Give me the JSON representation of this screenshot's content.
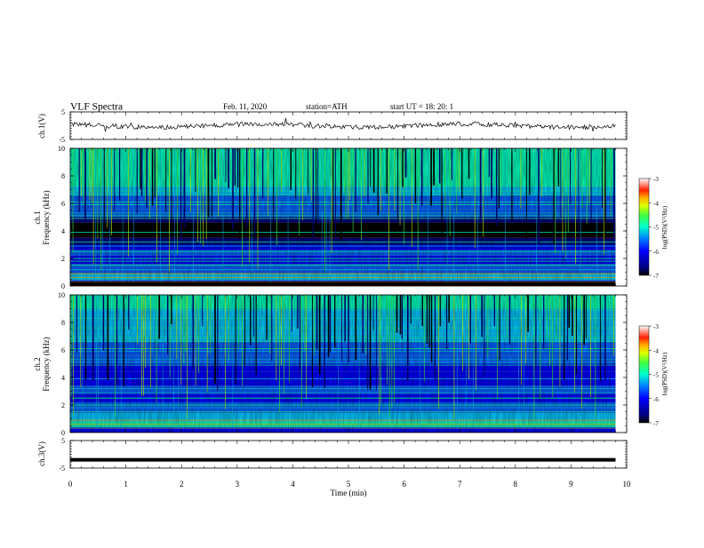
{
  "header": {
    "title": "VLF  Spectra",
    "date": "Feb. 11, 2020",
    "station": "station=ATH",
    "start": "start  UT  =   18: 20: 1"
  },
  "colors": {
    "colormap": [
      "#000000",
      "#00007f",
      "#0000ff",
      "#0060ff",
      "#00c8ff",
      "#00ffc0",
      "#40ff40",
      "#c8ff00",
      "#ffd000",
      "#ff5000",
      "#ff0000",
      "#ffffff"
    ]
  },
  "chart_data": [
    {
      "type": "line",
      "panel": "ch1-waveform",
      "ylabel": "ch.1(V)",
      "ylim": [
        -5,
        5
      ],
      "yticks": [
        "5",
        "-5"
      ],
      "xlim": [
        0,
        10
      ],
      "x_end": 9.8,
      "description_level": 0,
      "grid": false
    },
    {
      "type": "heatmap",
      "panel": "ch1-spectrogram",
      "ylabel": "ch.1\nFrequency (kHz)",
      "ylim": [
        0,
        10
      ],
      "yticks": [
        "0",
        "2",
        "4",
        "6",
        "8",
        "10"
      ],
      "xlim": [
        0,
        10
      ],
      "x_end": 9.8,
      "colorbar": {
        "label": "log(PSD)(V²/Hz)",
        "range": [
          -7,
          -3
        ],
        "ticks": [
          "-3",
          "-4",
          "-5",
          "-6",
          "-7"
        ]
      }
    },
    {
      "type": "heatmap",
      "panel": "ch2-spectrogram",
      "ylabel": "ch.2\nFrequency (kHz)",
      "ylim": [
        0,
        10
      ],
      "yticks": [
        "0",
        "2",
        "4",
        "6",
        "8",
        "10"
      ],
      "xlim": [
        0,
        10
      ],
      "x_end": 9.8,
      "colorbar": {
        "label": "log(PSD)(V²/Hz)",
        "range": [
          -7,
          -3
        ],
        "ticks": [
          "-3",
          "-4",
          "-5",
          "-6",
          "-7"
        ]
      }
    },
    {
      "type": "line",
      "panel": "ch3-waveform",
      "ylabel": "ch.3(V)",
      "ylim": [
        -5,
        5
      ],
      "yticks": [
        "5",
        "-5"
      ],
      "xlim": [
        0,
        10
      ],
      "x_end": 9.8,
      "level": -2,
      "xlabel": "Time  (min)",
      "xticks": [
        "0",
        "1",
        "2",
        "3",
        "4",
        "5",
        "6",
        "7",
        "8",
        "9",
        "10"
      ]
    }
  ]
}
